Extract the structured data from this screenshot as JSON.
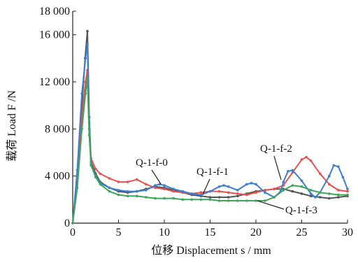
{
  "chart_data": {
    "type": "line",
    "xlabel": "位移 Displacement s / mm",
    "ylabel": "载荷 Load F /N",
    "xlim": [
      0,
      30
    ],
    "ylim": [
      0,
      18000
    ],
    "xticks": [
      {
        "v": 0,
        "label": "0"
      },
      {
        "v": 5,
        "label": "5"
      },
      {
        "v": 10,
        "label": "10"
      },
      {
        "v": 15,
        "label": "15"
      },
      {
        "v": 20,
        "label": "20"
      },
      {
        "v": 25,
        "label": "25"
      },
      {
        "v": 30,
        "label": "30"
      }
    ],
    "yticks": [
      {
        "v": 0,
        "label": "0"
      },
      {
        "v": 4000,
        "label": "4 000"
      },
      {
        "v": 8000,
        "label": "8 000"
      },
      {
        "v": 12000,
        "label": "12 000"
      },
      {
        "v": 16000,
        "label": "16 000"
      },
      {
        "v": 18000,
        "label": "18 000"
      }
    ],
    "grid": false,
    "series": [
      {
        "name": "Q-1-f-0",
        "color": "#555555",
        "points": [
          [
            0,
            0
          ],
          [
            0.5,
            4000
          ],
          [
            1.0,
            10000
          ],
          [
            1.35,
            14000
          ],
          [
            1.6,
            16300
          ],
          [
            1.8,
            9000
          ],
          [
            2.0,
            5200
          ],
          [
            2.5,
            4200
          ],
          [
            3,
            3500
          ],
          [
            4,
            3000
          ],
          [
            5,
            2700
          ],
          [
            6,
            2600
          ],
          [
            7,
            2700
          ],
          [
            8,
            2900
          ],
          [
            9,
            3100
          ],
          [
            10,
            3000
          ],
          [
            11,
            2800
          ],
          [
            12,
            2600
          ],
          [
            13,
            2400
          ],
          [
            14,
            2300
          ],
          [
            15,
            2200
          ],
          [
            16,
            2200
          ],
          [
            17,
            2200
          ],
          [
            18,
            2300
          ],
          [
            19,
            2500
          ],
          [
            20,
            2700
          ],
          [
            21,
            2800
          ],
          [
            22,
            2900
          ],
          [
            23,
            2900
          ],
          [
            24,
            2700
          ],
          [
            25,
            2500
          ],
          [
            26,
            2300
          ],
          [
            27,
            2200
          ],
          [
            28,
            2100
          ],
          [
            29,
            2200
          ],
          [
            30,
            2300
          ]
        ]
      },
      {
        "name": "Q-1-f-1",
        "color": "#e8514e",
        "points": [
          [
            0,
            0
          ],
          [
            0.5,
            3500
          ],
          [
            1.0,
            9000
          ],
          [
            1.4,
            12000
          ],
          [
            1.6,
            13000
          ],
          [
            1.8,
            8000
          ],
          [
            2.0,
            5500
          ],
          [
            2.5,
            4600
          ],
          [
            3,
            4200
          ],
          [
            4,
            3800
          ],
          [
            5,
            3500
          ],
          [
            6,
            3500
          ],
          [
            7,
            3700
          ],
          [
            8,
            3300
          ],
          [
            9,
            3000
          ],
          [
            10,
            2900
          ],
          [
            11,
            2700
          ],
          [
            12,
            2600
          ],
          [
            13,
            2500
          ],
          [
            14,
            2600
          ],
          [
            15,
            2700
          ],
          [
            16,
            2700
          ],
          [
            17,
            2600
          ],
          [
            18,
            2500
          ],
          [
            19,
            2400
          ],
          [
            20,
            2600
          ],
          [
            21,
            2800
          ],
          [
            22,
            2900
          ],
          [
            23,
            3200
          ],
          [
            24,
            4300
          ],
          [
            25,
            5400
          ],
          [
            25.5,
            5600
          ],
          [
            26,
            5300
          ],
          [
            27,
            4200
          ],
          [
            28,
            3300
          ],
          [
            29,
            2800
          ],
          [
            30,
            2700
          ]
        ]
      },
      {
        "name": "Q-1-f-2",
        "color": "#3b7fd1",
        "points": [
          [
            0,
            0
          ],
          [
            0.5,
            4500
          ],
          [
            1.0,
            11000
          ],
          [
            1.4,
            14000
          ],
          [
            1.6,
            15200
          ],
          [
            1.8,
            8500
          ],
          [
            2.0,
            5000
          ],
          [
            2.5,
            4000
          ],
          [
            3,
            3400
          ],
          [
            4,
            3000
          ],
          [
            5,
            2800
          ],
          [
            6,
            2700
          ],
          [
            7,
            2700
          ],
          [
            8,
            2800
          ],
          [
            9,
            3200
          ],
          [
            9.5,
            3300
          ],
          [
            10,
            3200
          ],
          [
            11,
            2900
          ],
          [
            12,
            2700
          ],
          [
            13,
            2500
          ],
          [
            14,
            2400
          ],
          [
            15,
            2700
          ],
          [
            16,
            3100
          ],
          [
            16.5,
            3200
          ],
          [
            17,
            3100
          ],
          [
            18,
            2800
          ],
          [
            19,
            3300
          ],
          [
            19.5,
            3400
          ],
          [
            20,
            3300
          ],
          [
            21,
            2600
          ],
          [
            22,
            2200
          ],
          [
            22.7,
            2700
          ],
          [
            23,
            3500
          ],
          [
            23.5,
            4400
          ],
          [
            24,
            4500
          ],
          [
            25,
            3600
          ],
          [
            26,
            2500
          ],
          [
            26.5,
            2200
          ],
          [
            27,
            2600
          ],
          [
            28,
            4000
          ],
          [
            28.5,
            4900
          ],
          [
            29,
            4800
          ],
          [
            29.5,
            3900
          ],
          [
            30,
            2900
          ]
        ]
      },
      {
        "name": "Q-1-f-3",
        "color": "#3ea55a",
        "points": [
          [
            0,
            0
          ],
          [
            0.5,
            3000
          ],
          [
            1.0,
            8000
          ],
          [
            1.4,
            11000
          ],
          [
            1.6,
            12300
          ],
          [
            1.8,
            7500
          ],
          [
            2.0,
            4900
          ],
          [
            2.5,
            3900
          ],
          [
            3,
            3300
          ],
          [
            4,
            2700
          ],
          [
            5,
            2400
          ],
          [
            6,
            2300
          ],
          [
            7,
            2300
          ],
          [
            8,
            2200
          ],
          [
            9,
            2100
          ],
          [
            10,
            2100
          ],
          [
            11,
            2100
          ],
          [
            12,
            2000
          ],
          [
            13,
            2000
          ],
          [
            14,
            2000
          ],
          [
            15,
            2000
          ],
          [
            16,
            1900
          ],
          [
            17,
            1900
          ],
          [
            18,
            1900
          ],
          [
            19,
            1900
          ],
          [
            20,
            1900
          ],
          [
            21,
            1900
          ],
          [
            22,
            2200
          ],
          [
            23,
            2800
          ],
          [
            24,
            3200
          ],
          [
            25,
            3100
          ],
          [
            26,
            2800
          ],
          [
            27,
            2600
          ],
          [
            28,
            2500
          ],
          [
            29,
            2400
          ],
          [
            30,
            2400
          ]
        ]
      }
    ],
    "annotations": [
      {
        "text": "Q-1-f-0",
        "series": "Q-1-f-0"
      },
      {
        "text": "Q-1-f-1",
        "series": "Q-1-f-1"
      },
      {
        "text": "Q-1-f-2",
        "series": "Q-1-f-2"
      },
      {
        "text": "Q-1-f-3",
        "series": "Q-1-f-3"
      }
    ]
  }
}
